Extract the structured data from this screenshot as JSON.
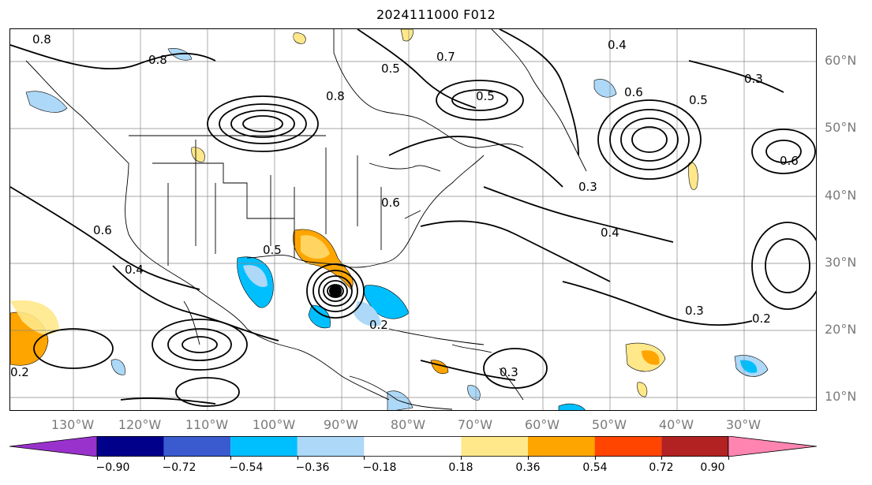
{
  "title": "2024111000 F012",
  "lat_labels": [
    "60°N",
    "50°N",
    "40°N",
    "30°N",
    "20°N",
    "10°N"
  ],
  "lon_labels": [
    "130°W",
    "120°W",
    "110°W",
    "100°W",
    "90°W",
    "80°W",
    "70°W",
    "60°W",
    "50°W",
    "40°W",
    "30°W"
  ],
  "colorbar": {
    "ticks": [
      "−0.90",
      "−0.72",
      "−0.54",
      "−0.36",
      "−0.18",
      "0.18",
      "0.36",
      "0.54",
      "0.72",
      "0.90"
    ],
    "colors": [
      "#9932cc",
      "#00008b",
      "#3a5bcf",
      "#00bfff",
      "#add8f7",
      "#ffffff",
      "#ffe88a",
      "#ffa500",
      "#ff4500",
      "#b22222",
      "#ff85b0"
    ]
  },
  "contour_labels": [
    "0.8",
    "0.8",
    "0.5",
    "0.7",
    "0.4",
    "0.6",
    "0.5",
    "0.3",
    "0.8",
    "0.6",
    "0.2",
    "0.3",
    "0.4",
    "0.6",
    "0.5",
    "0.3",
    "0.4",
    "0.6",
    "0.2",
    "0.3",
    "0.2",
    "0.5"
  ],
  "fill_colors": {
    "light_blue": "#add8f7",
    "blue": "#00bfff",
    "light_yellow": "#ffe88a",
    "orange": "#ffa500",
    "black": "#000000"
  }
}
